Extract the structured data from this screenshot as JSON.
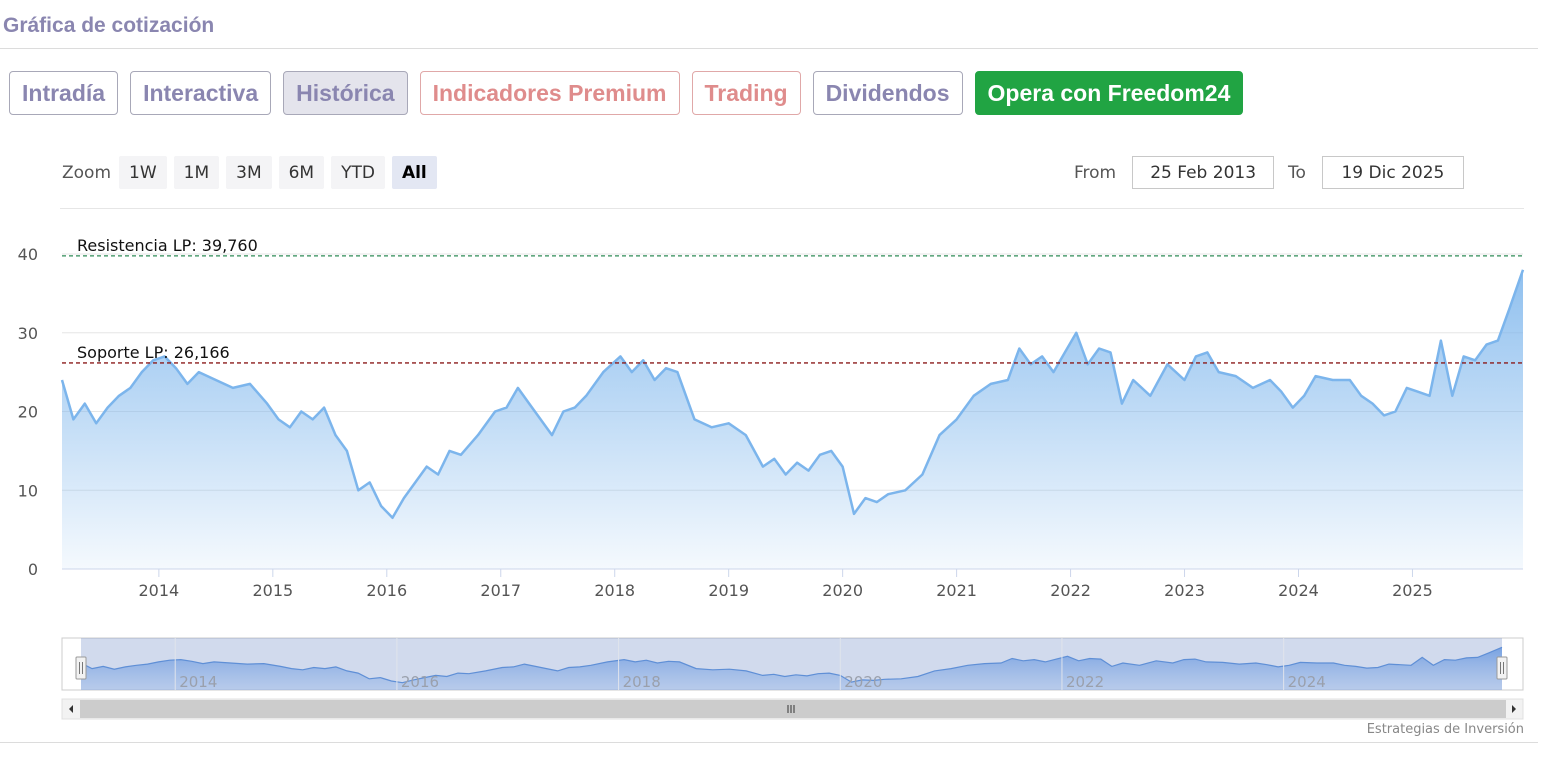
{
  "section": {
    "title": "Gráfica de cotización"
  },
  "tabs": [
    {
      "label": "Intradía",
      "variant": "normal"
    },
    {
      "label": "Interactiva",
      "variant": "normal"
    },
    {
      "label": "Histórica",
      "variant": "active"
    },
    {
      "label": "Indicadores Premium",
      "variant": "premium"
    },
    {
      "label": "Trading",
      "variant": "premium"
    },
    {
      "label": "Dividendos",
      "variant": "normal"
    },
    {
      "label": "Opera con Freedom24",
      "variant": "cta"
    }
  ],
  "zoom": {
    "label": "Zoom",
    "buttons": [
      "1W",
      "1M",
      "3M",
      "6M",
      "YTD",
      "All"
    ],
    "selected": "All"
  },
  "range": {
    "from_label": "From",
    "from_value": "25 Feb 2013",
    "to_label": "To",
    "to_value": "19 Dic 2025"
  },
  "credits": "Estrategias de Inversión",
  "colors": {
    "line": "#7cb5ec",
    "resistance": "#2e8b57",
    "support": "#8b1a1a",
    "cta": "#21a443",
    "tab_text": "#8a86b0",
    "premium_text": "#df8c8c"
  },
  "chart_data": {
    "type": "area",
    "title": "",
    "xlabel": "",
    "ylabel": "",
    "ylim": [
      0,
      40
    ],
    "y_ticks": [
      0,
      10,
      20,
      30,
      40
    ],
    "x_ticks": [
      "2014",
      "2015",
      "2016",
      "2017",
      "2018",
      "2019",
      "2020",
      "2021",
      "2022",
      "2023",
      "2024",
      "2025"
    ],
    "x_range": [
      2013.15,
      2025.97
    ],
    "grid": true,
    "lines": [
      {
        "label": "Resistencia LP: 39,760",
        "value": 39.76,
        "style": "dashed",
        "color": "#2e8b57"
      },
      {
        "label": "Soporte LP: 26,166",
        "value": 26.166,
        "style": "dashed",
        "color": "#8b1a1a"
      }
    ],
    "series": [
      {
        "x": [
          2013.15,
          2013.25,
          2013.35,
          2013.45,
          2013.55,
          2013.65,
          2013.75,
          2013.85,
          2013.95,
          2014.05,
          2014.15,
          2014.25,
          2014.35,
          2014.5,
          2014.65,
          2014.8,
          2014.95,
          2015.05,
          2015.15,
          2015.25,
          2015.35,
          2015.45,
          2015.55,
          2015.65,
          2015.75,
          2015.85,
          2015.95,
          2016.05,
          2016.15,
          2016.25,
          2016.35,
          2016.45,
          2016.55,
          2016.65,
          2016.8,
          2016.95,
          2017.05,
          2017.15,
          2017.25,
          2017.35,
          2017.45,
          2017.55,
          2017.65,
          2017.75,
          2017.9,
          2018.05,
          2018.15,
          2018.25,
          2018.35,
          2018.45,
          2018.55,
          2018.7,
          2018.85,
          2019.0,
          2019.15,
          2019.3,
          2019.4,
          2019.5,
          2019.6,
          2019.7,
          2019.8,
          2019.9,
          2020.0,
          2020.1,
          2020.2,
          2020.3,
          2020.4,
          2020.55,
          2020.7,
          2020.85,
          2021.0,
          2021.15,
          2021.3,
          2021.45,
          2021.55,
          2021.65,
          2021.75,
          2021.85,
          2021.95,
          2022.05,
          2022.15,
          2022.25,
          2022.35,
          2022.45,
          2022.55,
          2022.7,
          2022.85,
          2023.0,
          2023.1,
          2023.2,
          2023.3,
          2023.45,
          2023.6,
          2023.75,
          2023.85,
          2023.95,
          2024.05,
          2024.15,
          2024.3,
          2024.45,
          2024.55,
          2024.65,
          2024.75,
          2024.85,
          2024.95,
          2025.05,
          2025.15,
          2025.25,
          2025.35,
          2025.45,
          2025.55,
          2025.65,
          2025.75,
          2025.85,
          2025.97
        ],
        "values": [
          24,
          19,
          21,
          18.5,
          20.5,
          22,
          23,
          25,
          26.5,
          27,
          25.5,
          23.5,
          25,
          24,
          23,
          23.5,
          21,
          19,
          18,
          20,
          19,
          20.5,
          17,
          15,
          10,
          11,
          8,
          6.5,
          9,
          11,
          13,
          12,
          15,
          14.5,
          17,
          20,
          20.5,
          23,
          21,
          19,
          17,
          20,
          20.5,
          22,
          25,
          27,
          25,
          26.5,
          24,
          25.5,
          25,
          19,
          18,
          18.5,
          17,
          13,
          14,
          12,
          13.5,
          12.5,
          14.5,
          15,
          13,
          7,
          9,
          8.5,
          9.5,
          10,
          12,
          17,
          19,
          22,
          23.5,
          24,
          28,
          26,
          27,
          25,
          27.5,
          30,
          26,
          28,
          27.5,
          21,
          24,
          22,
          26,
          24,
          27,
          27.5,
          25,
          24.5,
          23,
          24,
          22.5,
          20.5,
          22,
          24.5,
          24,
          24,
          22,
          21,
          19.5,
          20,
          23,
          22.5,
          22,
          29,
          22,
          27,
          26.5,
          28.5,
          29,
          33,
          38
        ]
      }
    ]
  }
}
